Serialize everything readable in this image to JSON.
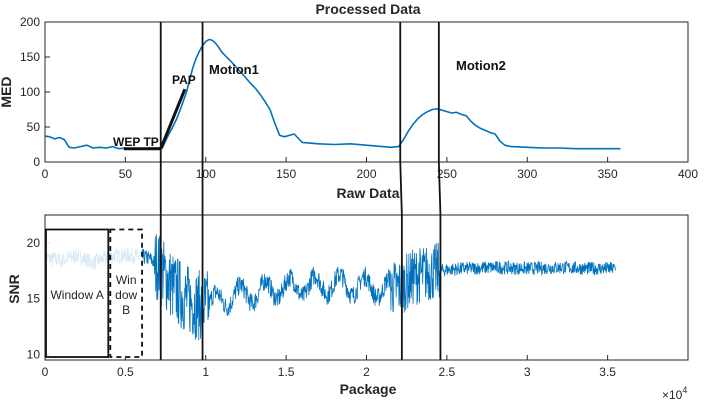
{
  "chart_data": [
    {
      "type": "line",
      "title": "Processed Data",
      "xlabel": "",
      "ylabel": "MED",
      "xlim": [
        0,
        400
      ],
      "ylim": [
        0,
        200
      ],
      "xticks": [
        0,
        50,
        100,
        150,
        200,
        250,
        300,
        350,
        400
      ],
      "yticks": [
        0,
        50,
        100,
        150,
        200
      ],
      "grid": false,
      "color": "#0072BD",
      "series": [
        {
          "x": [
            0,
            3,
            6,
            9,
            12,
            15,
            18,
            22,
            26,
            30,
            34,
            38,
            42,
            46,
            50,
            55,
            60,
            65,
            70,
            73,
            76,
            79,
            82,
            85,
            88,
            90,
            92,
            94,
            96,
            98,
            100,
            102,
            104,
            106,
            108,
            110,
            113,
            116,
            119,
            122,
            125,
            128,
            131,
            134,
            137,
            140,
            143,
            146,
            149,
            152,
            155,
            160,
            170,
            180,
            190,
            200,
            210,
            215,
            220,
            223,
            226,
            229,
            232,
            235,
            238,
            241,
            244,
            247,
            250,
            253,
            256,
            259,
            262,
            265,
            268,
            271,
            274,
            277,
            280,
            283,
            286,
            290,
            300,
            310,
            320,
            330,
            340,
            350,
            358
          ],
          "y": [
            37,
            36,
            33,
            35,
            32,
            21,
            20,
            22,
            24,
            20,
            21,
            20,
            22,
            19,
            20,
            19,
            19,
            20,
            20,
            20,
            35,
            48,
            62,
            80,
            100,
            118,
            135,
            148,
            158,
            166,
            172,
            175,
            174,
            170,
            164,
            157,
            150,
            143,
            135,
            128,
            120,
            112,
            105,
            96,
            86,
            75,
            55,
            38,
            36,
            38,
            40,
            28,
            26,
            25,
            26,
            24,
            22,
            21,
            22,
            32,
            44,
            54,
            62,
            68,
            72,
            75,
            76,
            74,
            72,
            70,
            71,
            68,
            66,
            58,
            52,
            48,
            45,
            42,
            40,
            30,
            24,
            22,
            21,
            20,
            20,
            19,
            19,
            19,
            19
          ]
        }
      ],
      "vlines_x": [
        72,
        98,
        221,
        245
      ],
      "fit_segments": [
        {
          "x": [
            49,
            72
          ],
          "y": [
            19,
            19
          ]
        },
        {
          "x": [
            72,
            87
          ],
          "y": [
            19,
            104
          ]
        }
      ],
      "annotations": [
        "WEP TP",
        "PAP",
        "Motion1",
        "Motion2"
      ]
    },
    {
      "type": "line",
      "title": "Raw Data",
      "xlabel": "Package",
      "ylabel": "SNR",
      "xlim": [
        0,
        40000
      ],
      "ylim": [
        9.5,
        22.5
      ],
      "xticks": [
        0,
        5000,
        10000,
        15000,
        20000,
        25000,
        30000,
        35000,
        40000
      ],
      "xtick_labels": [
        "0",
        "0.5",
        "1",
        "1.5",
        "2",
        "2.5",
        "3",
        "3.5",
        ""
      ],
      "yticks": [
        10,
        15,
        20
      ],
      "x_exponent": "4",
      "x_exponent_base": "×10",
      "grid": false,
      "color": "#0072BD",
      "series": [
        {
          "x": [
            0,
            1000,
            2000,
            3000,
            4000,
            5000,
            6000,
            6500,
            7000,
            7500,
            8000,
            8500,
            9000,
            9500,
            10000,
            10500,
            11000,
            11500,
            12000,
            13000,
            14000,
            15000,
            16000,
            17000,
            18000,
            19000,
            20000,
            21000,
            22000,
            22500,
            23000,
            23500,
            24000,
            24500,
            25000,
            26000,
            28000,
            30000,
            32000,
            34000,
            35500
          ],
          "y": [
            18.7,
            18.4,
            18.9,
            18.2,
            18.8,
            18.9,
            18.8,
            18.6,
            18.0,
            17.0,
            16.0,
            15.3,
            14.8,
            14.4,
            14.4,
            14.6,
            15.0,
            15.2,
            15.3,
            15.5,
            15.8,
            16.0,
            16.1,
            16.2,
            16.3,
            16.2,
            16.1,
            15.9,
            16.0,
            16.5,
            17.0,
            17.2,
            17.3,
            17.5,
            17.6,
            17.7,
            17.8,
            17.7,
            17.8,
            17.7,
            17.7
          ]
        }
      ],
      "vlines_x": [
        7200,
        9800,
        22200,
        24600
      ],
      "regions": [
        {
          "label_lines": [
            "Window A"
          ],
          "x": [
            0,
            4000
          ],
          "y": [
            9.5,
            21.2
          ],
          "style": "solid"
        },
        {
          "label_lines": [
            "Win",
            "dow",
            "B"
          ],
          "x": [
            4000,
            6100
          ],
          "y": [
            9.5,
            21.2
          ],
          "style": "dashed"
        }
      ]
    }
  ]
}
